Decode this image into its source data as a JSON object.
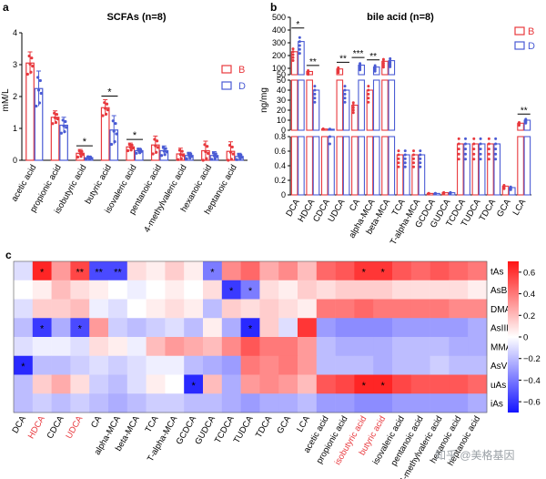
{
  "panels": [
    {
      "letter": "a"
    },
    {
      "letter": "b"
    },
    {
      "letter": "c"
    }
  ],
  "colors": {
    "B": "#e8383d",
    "D": "#4a5bd4"
  },
  "watermark": "知乎 @美格基因",
  "chart_data": [
    {
      "type": "bar",
      "title": "SCFAs (n=8)",
      "ylabel": "mM/L",
      "ylim": [
        0,
        4
      ],
      "yticks": [
        0,
        1,
        2,
        3,
        4
      ],
      "legend_position": "right",
      "categories": [
        "acetic acid",
        "propionic acid",
        "isobutyric acid",
        "butyric acid",
        "isovaleric acid",
        "pentanoic acid",
        "4-methylvaleric acid",
        "hexanoic acid",
        "heptanoic acid"
      ],
      "series": [
        {
          "name": "B",
          "values": [
            3.05,
            1.35,
            0.22,
            1.65,
            0.42,
            0.48,
            0.2,
            0.3,
            0.28
          ],
          "errors": [
            0.35,
            0.2,
            0.12,
            0.25,
            0.12,
            0.28,
            0.18,
            0.3,
            0.3
          ]
        },
        {
          "name": "D",
          "values": [
            2.25,
            1.1,
            0.08,
            0.95,
            0.3,
            0.3,
            0.15,
            0.15,
            0.12
          ],
          "errors": [
            0.55,
            0.25,
            0.05,
            0.45,
            0.08,
            0.15,
            0.1,
            0.12,
            0.1
          ]
        }
      ],
      "significance": [
        {
          "category": "isobutyric acid",
          "label": "*"
        },
        {
          "category": "butyric acid",
          "label": "*"
        },
        {
          "category": "isovaleric acid",
          "label": "*"
        }
      ]
    },
    {
      "type": "bar",
      "title": "bile acid (n=8)",
      "ylabel": "ng/mg",
      "y_axis_breaks": [
        {
          "range": [
            0,
            0.8
          ],
          "ticks": [
            0,
            0.2,
            0.4,
            0.6,
            0.8
          ]
        },
        {
          "range": [
            0,
            50
          ],
          "ticks": [
            0,
            10,
            20,
            30,
            40,
            50
          ]
        },
        {
          "range": [
            50,
            500
          ],
          "ticks": [
            50,
            100,
            200,
            300,
            400,
            500
          ]
        }
      ],
      "legend_position": "top-right",
      "categories": [
        "DCA",
        "HDCA",
        "CDCA",
        "UDCA",
        "CA",
        "alpha-MCA",
        "beta-MCA",
        "TCA",
        "T-alpha-MCA",
        "GCDCA",
        "GUDCA",
        "TCDCA",
        "TUDCA",
        "TDCA",
        "GCA",
        "LCA"
      ],
      "series": [
        {
          "name": "B",
          "values": [
            230,
            75,
            1.2,
            95,
            25,
            40,
            155,
            0.55,
            0.55,
            0.02,
            0.03,
            0.7,
            0.7,
            0.7,
            0.12,
            7
          ]
        },
        {
          "name": "D",
          "values": [
            310,
            40,
            1.0,
            40,
            125,
            110,
            160,
            0.55,
            0.55,
            0.02,
            0.03,
            0.7,
            0.7,
            0.7,
            0.1,
            10
          ]
        }
      ],
      "significance": [
        {
          "category": "DCA",
          "label": "*"
        },
        {
          "category": "HDCA",
          "label": "**"
        },
        {
          "category": "UDCA",
          "label": "**"
        },
        {
          "category": "CA",
          "label": "***"
        },
        {
          "category": "alpha-MCA",
          "label": "**"
        },
        {
          "category": "LCA",
          "label": "**"
        }
      ]
    },
    {
      "type": "heatmap",
      "colorbar_range": [
        -0.7,
        0.7
      ],
      "colorbar_ticks": [
        -0.6,
        -0.4,
        -0.2,
        0,
        0.2,
        0.4,
        0.6
      ],
      "rows": [
        "tAs",
        "AsB",
        "DMA",
        "AsIII",
        "MMA",
        "AsV",
        "uAs",
        "iAs"
      ],
      "cols": [
        "DCA",
        "HDCA",
        "CDCA",
        "UDCA",
        "CA",
        "alpha-MCA",
        "beta-MCA",
        "TCA",
        "T-alpha-MCA",
        "GCDCA",
        "GUDCA",
        "TCDCA",
        "TUDCA",
        "TDCA",
        "GCA",
        "LCA",
        "acetic acid",
        "propionic acid",
        "isobutyric acid",
        "butyric acid",
        "isovaleric acid",
        "pentanoic acid",
        "4-methylvaleric acid",
        "hexanoic acid",
        "heptanoic acid"
      ],
      "highlighted_cols": [
        "HDCA",
        "UDCA",
        "isobutyric acid",
        "butyric acid"
      ],
      "values": [
        [
          -0.1,
          0.65,
          0.3,
          0.55,
          -0.55,
          -0.55,
          0.1,
          0.05,
          0.15,
          0.05,
          -0.4,
          0.35,
          0.45,
          0.25,
          0.35,
          0.2,
          0.45,
          0.5,
          0.6,
          0.6,
          0.5,
          0.45,
          0.5,
          0.45,
          0.4
        ],
        [
          0.0,
          0.05,
          0.2,
          0.1,
          0.05,
          0.0,
          -0.05,
          0.0,
          0.05,
          0.0,
          0.1,
          -0.6,
          -0.4,
          0.1,
          0.05,
          0.15,
          0.1,
          0.15,
          0.15,
          0.15,
          0.1,
          0.1,
          0.1,
          0.1,
          0.05
        ],
        [
          -0.1,
          0.15,
          0.15,
          0.2,
          -0.05,
          -0.1,
          0.0,
          0.05,
          0.1,
          0.05,
          -0.2,
          0.15,
          0.1,
          0.15,
          0.1,
          0.05,
          0.4,
          0.4,
          0.45,
          0.4,
          0.4,
          0.4,
          0.4,
          0.35,
          0.35
        ],
        [
          -0.2,
          -0.6,
          -0.25,
          -0.55,
          0.3,
          -0.15,
          -0.2,
          -0.15,
          -0.1,
          -0.2,
          0.05,
          -0.25,
          -0.65,
          0.15,
          -0.1,
          0.6,
          -0.3,
          -0.35,
          -0.35,
          -0.35,
          -0.3,
          -0.3,
          -0.3,
          -0.3,
          -0.25
        ],
        [
          -0.1,
          -0.05,
          -0.05,
          -0.1,
          0.1,
          0.05,
          -0.05,
          0.2,
          0.3,
          0.25,
          0.2,
          0.35,
          0.5,
          0.4,
          0.4,
          0.3,
          -0.2,
          -0.25,
          -0.25,
          -0.25,
          -0.2,
          -0.2,
          -0.2,
          -0.25,
          -0.25
        ],
        [
          -0.65,
          -0.2,
          -0.2,
          -0.15,
          -0.1,
          -0.15,
          -0.1,
          -0.05,
          -0.05,
          -0.2,
          -0.25,
          -0.3,
          0.4,
          0.35,
          0.4,
          0.3,
          -0.2,
          -0.2,
          -0.2,
          -0.25,
          -0.2,
          -0.2,
          -0.15,
          -0.2,
          -0.2
        ],
        [
          -0.2,
          0.15,
          0.25,
          0.1,
          -0.15,
          -0.2,
          -0.1,
          0.05,
          0.0,
          -0.65,
          0.2,
          -0.25,
          0.3,
          0.35,
          0.3,
          0.2,
          0.5,
          0.55,
          0.65,
          0.65,
          0.55,
          0.5,
          0.5,
          0.5,
          0.45
        ],
        [
          -0.2,
          -0.15,
          -0.2,
          -0.15,
          -0.2,
          -0.25,
          -0.2,
          -0.15,
          -0.15,
          -0.2,
          -0.2,
          -0.25,
          -0.3,
          -0.25,
          -0.25,
          -0.2,
          -0.3,
          -0.3,
          -0.35,
          -0.35,
          -0.3,
          -0.3,
          -0.3,
          -0.3,
          -0.25
        ]
      ],
      "stars": [
        {
          "row": "tAs",
          "col": "HDCA",
          "label": "*"
        },
        {
          "row": "tAs",
          "col": "UDCA",
          "label": "**"
        },
        {
          "row": "tAs",
          "col": "CA",
          "label": "**"
        },
        {
          "row": "tAs",
          "col": "alpha-MCA",
          "label": "**"
        },
        {
          "row": "tAs",
          "col": "GUDCA",
          "label": "*"
        },
        {
          "row": "tAs",
          "col": "isobutyric acid",
          "label": "*"
        },
        {
          "row": "tAs",
          "col": "butyric acid",
          "label": "*"
        },
        {
          "row": "AsB",
          "col": "TCDCA",
          "label": "*"
        },
        {
          "row": "AsB",
          "col": "TUDCA",
          "label": "*"
        },
        {
          "row": "AsIII",
          "col": "HDCA",
          "label": "*"
        },
        {
          "row": "AsIII",
          "col": "UDCA",
          "label": "*"
        },
        {
          "row": "AsIII",
          "col": "TUDCA",
          "label": "*"
        },
        {
          "row": "AsV",
          "col": "DCA",
          "label": "*"
        },
        {
          "row": "uAs",
          "col": "GCDCA",
          "label": "*"
        },
        {
          "row": "uAs",
          "col": "isobutyric acid",
          "label": "*"
        },
        {
          "row": "uAs",
          "col": "butyric acid",
          "label": "*"
        }
      ]
    }
  ]
}
